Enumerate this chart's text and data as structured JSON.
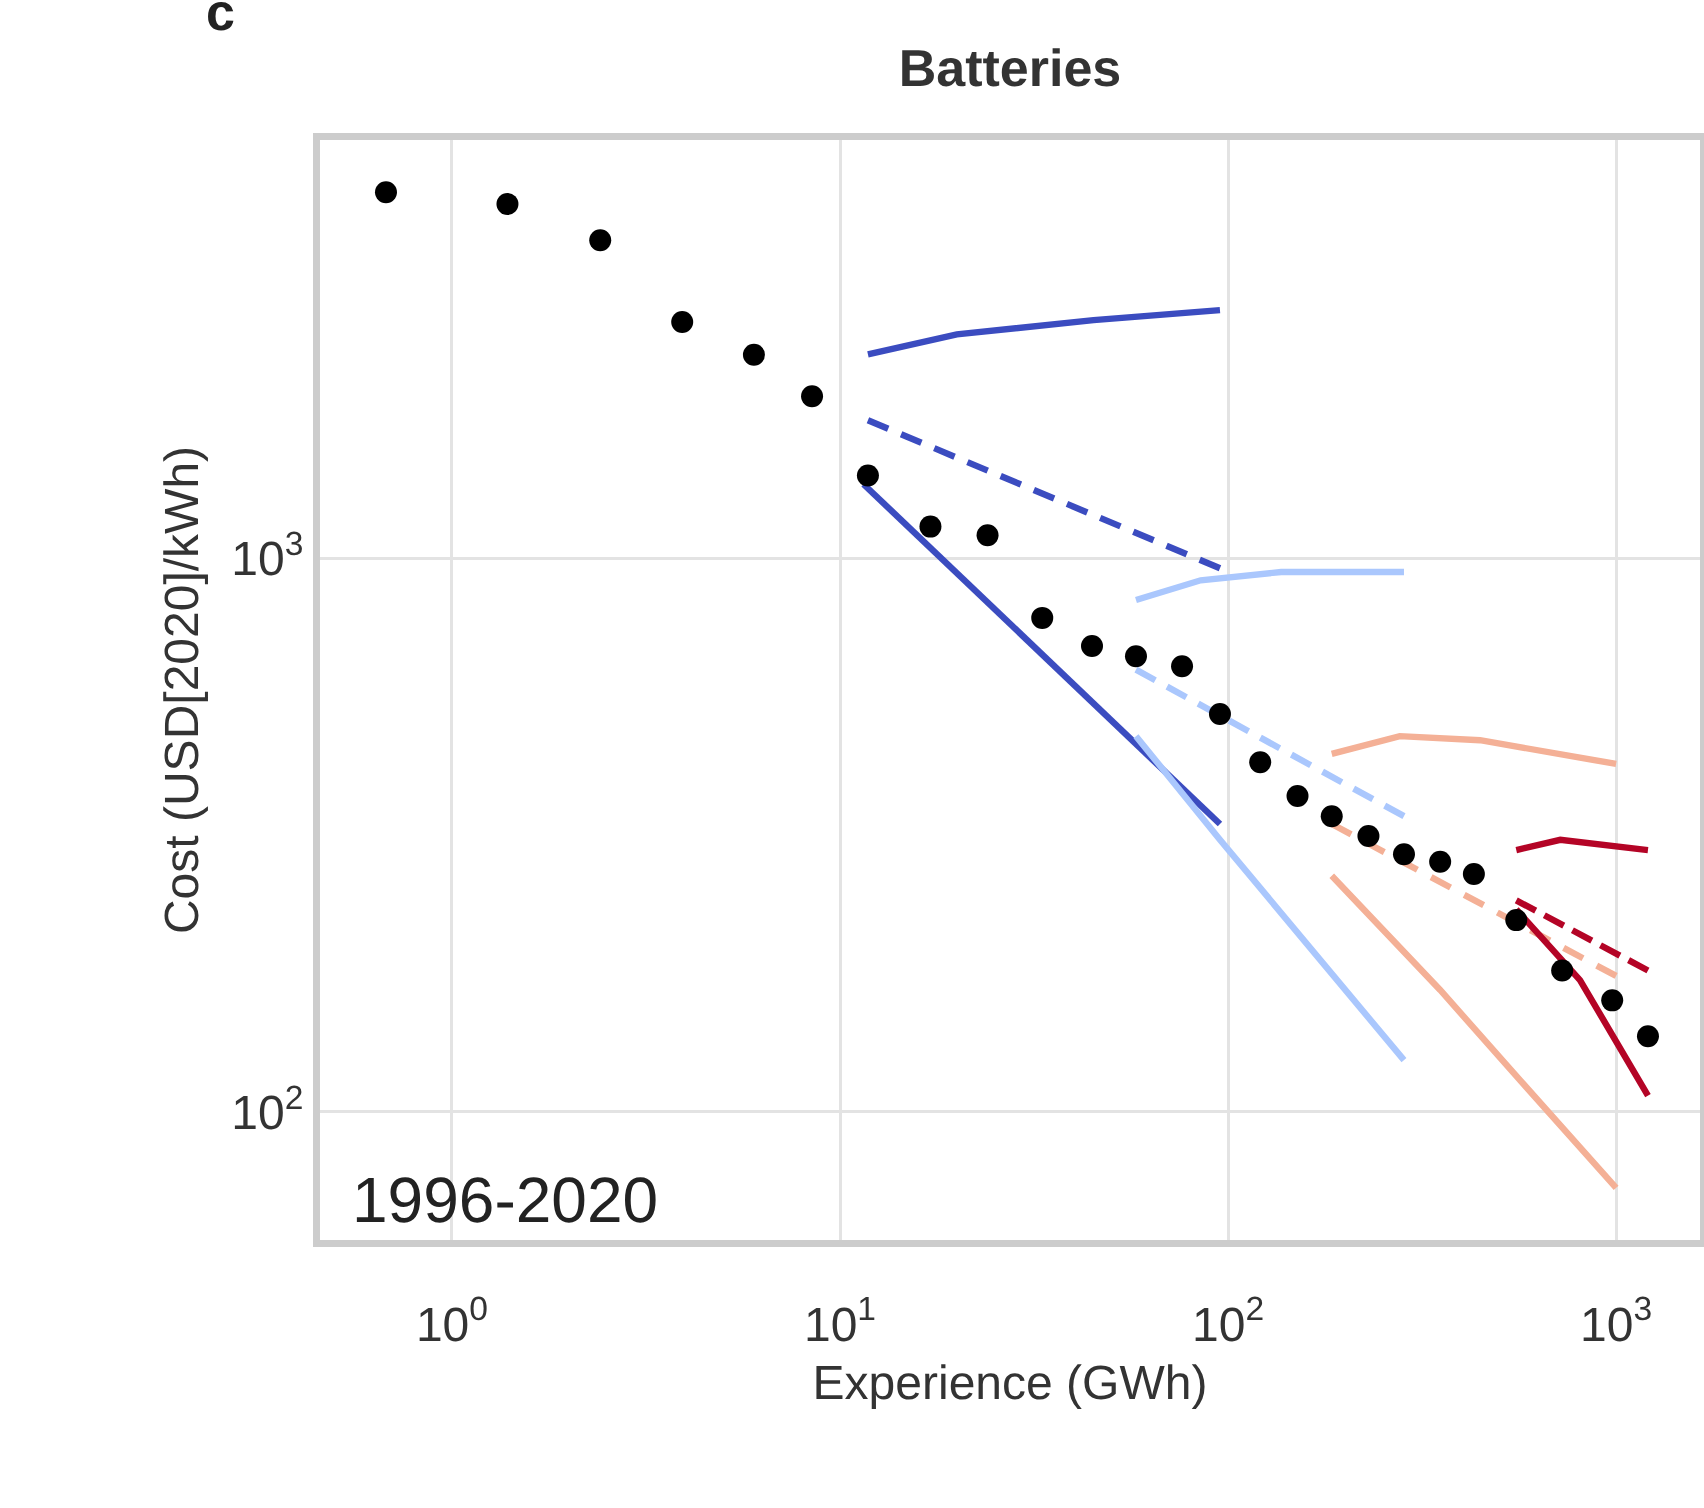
{
  "chart_data": {
    "type": "line",
    "title": "Batteries",
    "xlabel": "Experience (GWh)",
    "ylabel": "Cost (USD[2020]/kWh)",
    "annotations": [
      "c",
      "1996-2020"
    ],
    "log": "xy",
    "grid": true,
    "xlim": [
      0.457,
      1645
    ],
    "ylim": [
      58.7,
      5690
    ],
    "xticks": [
      {
        "value": 1,
        "label": "10$^{0}$"
      },
      {
        "value": 10,
        "label": "10$^{1}$"
      },
      {
        "value": 100,
        "label": "10$^{2}$"
      },
      {
        "value": 1000,
        "label": "10$^{3}$"
      }
    ],
    "yticks": [
      {
        "value": 100,
        "label": "10$^{2}$"
      },
      {
        "value": 1000,
        "label": "10$^{3}$"
      }
    ],
    "series": [
      {
        "color": "#3b4cc0",
        "line_style": "solid",
        "x": [
          11.8,
          20,
          45,
          95.3
        ],
        "values": [
          2334,
          2535,
          2690,
          2805
        ]
      },
      {
        "color": "#3b4cc0",
        "line_style": "dashed",
        "x": [
          11.8,
          95.3
        ],
        "values": [
          1774,
          959
        ]
      },
      {
        "color": "#3b4cc0",
        "line_style": "solid",
        "x": [
          11.5,
          95.3
        ],
        "values": [
          1360,
          331
        ]
      },
      {
        "color": "#aac7fd",
        "line_style": "solid",
        "x": [
          57.9,
          85,
          137,
          284
        ],
        "values": [
          840,
          912,
          944,
          944
        ]
      },
      {
        "color": "#aac7fd",
        "line_style": "dashed",
        "x": [
          57.9,
          284
        ],
        "values": [
          629,
          342
        ]
      },
      {
        "color": "#aac7fd",
        "line_style": "solid",
        "x": [
          57.9,
          95.3,
          284
        ],
        "values": [
          477,
          310,
          124
        ]
      },
      {
        "color": "#f4b096",
        "line_style": "solid",
        "x": [
          185,
          277,
          446,
          1000
        ],
        "values": [
          443,
          477,
          469,
          425
        ]
      },
      {
        "color": "#f4b096",
        "line_style": "dashed",
        "x": [
          185,
          1000
        ],
        "values": [
          331,
          176
        ]
      },
      {
        "color": "#f4b096",
        "line_style": "solid",
        "x": [
          185,
          352,
          566,
          1000
        ],
        "values": [
          267,
          166,
          114,
          72.9
        ]
      },
      {
        "color": "#b40426",
        "line_style": "solid",
        "x": [
          553,
          718,
          1208
        ],
        "values": [
          297,
          310,
          297
        ]
      },
      {
        "color": "#b40426",
        "line_style": "dashed",
        "x": [
          553,
          1208
        ],
        "values": [
          241,
          180
        ]
      },
      {
        "color": "#b40426",
        "line_style": "solid",
        "x": [
          553,
          807,
          1208
        ],
        "values": [
          232,
          173,
          107
        ]
      },
      {
        "type": "scatter",
        "color": "#000000",
        "marker": "circle",
        "x": [
          0.676,
          1.39,
          2.41,
          3.92,
          6.0,
          8.47,
          11.8,
          17.1,
          24.0,
          33.2,
          44.6,
          57.9,
          76.1,
          95.3,
          121,
          151,
          185,
          230,
          284,
          352,
          430,
          553,
          726,
          977,
          1208
        ],
        "values": [
          4580,
          4360,
          3750,
          2670,
          2330,
          1960,
          1410,
          1140,
          1100,
          780,
          694,
          665,
          638,
          523,
          428,
          372,
          342,
          315,
          292,
          283,
          269,
          222,
          180,
          159,
          137
        ]
      }
    ]
  }
}
